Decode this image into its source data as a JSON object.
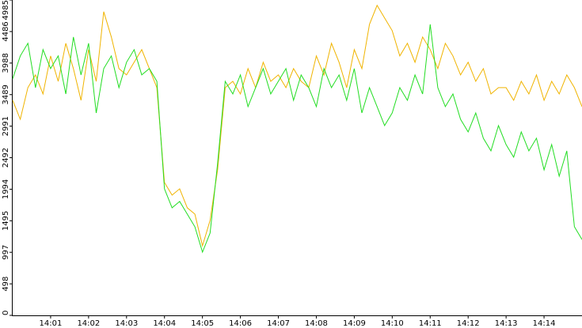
{
  "chart_data": {
    "type": "line",
    "x": [
      0,
      0.2,
      0.4,
      0.6,
      0.8,
      1,
      1.2,
      1.4,
      1.6,
      1.8,
      2,
      2.2,
      2.4,
      2.6,
      2.8,
      3,
      3.2,
      3.4,
      3.6,
      3.8,
      4,
      4.2,
      4.4,
      4.6,
      4.8,
      5,
      5.2,
      5.4,
      5.6,
      5.8,
      6,
      6.2,
      6.4,
      6.6,
      6.8,
      7,
      7.2,
      7.4,
      7.6,
      7.8,
      8,
      8.2,
      8.4,
      8.6,
      8.8,
      9,
      9.2,
      9.4,
      9.6,
      9.8,
      10,
      10.2,
      10.4,
      10.6,
      10.8,
      11,
      11.2,
      11.4,
      11.6,
      11.8,
      12,
      12.2,
      12.4,
      12.6,
      12.8,
      13,
      13.2,
      13.4,
      13.6,
      13.8,
      14,
      14.2,
      14.4,
      14.6,
      14.8,
      15
    ],
    "series": [
      {
        "color": "#f0b400",
        "values": [
          3400,
          3100,
          3600,
          3800,
          3500,
          4100,
          3700,
          4300,
          3900,
          3400,
          4200,
          3700,
          4800,
          4400,
          3900,
          3800,
          4000,
          4200,
          3900,
          3600,
          2100,
          1900,
          2000,
          1700,
          1600,
          1100,
          1500,
          2300,
          3600,
          3700,
          3500,
          3900,
          3600,
          4000,
          3700,
          3800,
          3600,
          3900,
          3700,
          3600,
          4100,
          3800,
          4300,
          4000,
          3600,
          4200,
          3900,
          4600,
          4900,
          4700,
          4500,
          4100,
          4300,
          4000,
          4400,
          4200,
          3900,
          4300,
          4100,
          3800,
          4000,
          3700,
          3900,
          3500,
          3600,
          3600,
          3400,
          3700,
          3500,
          3800,
          3400,
          3700,
          3500,
          3800,
          3600,
          3300
        ]
      },
      {
        "color": "#22dd22",
        "values": [
          3740,
          4100,
          4300,
          3600,
          4200,
          3900,
          4100,
          3500,
          4400,
          3800,
          4300,
          3200,
          3900,
          4100,
          3600,
          4000,
          4200,
          3800,
          3900,
          3700,
          2000,
          1700,
          1800,
          1600,
          1400,
          1000,
          1300,
          2400,
          3700,
          3500,
          3800,
          3300,
          3600,
          3900,
          3500,
          3700,
          3900,
          3400,
          3800,
          3600,
          3300,
          3900,
          3600,
          3800,
          3400,
          3900,
          3200,
          3600,
          3300,
          3000,
          3200,
          3600,
          3400,
          3800,
          3500,
          4600,
          3600,
          3300,
          3500,
          3100,
          2900,
          3200,
          2800,
          2600,
          3000,
          2700,
          2500,
          2900,
          2600,
          2800,
          2300,
          2700,
          2200,
          2600,
          1400,
          1200
        ]
      }
    ],
    "xlim": [
      0,
      15
    ],
    "xticks": [
      {
        "value": 1,
        "label": "14:01"
      },
      {
        "value": 2,
        "label": "14:02"
      },
      {
        "value": 3,
        "label": "14:03"
      },
      {
        "value": 4,
        "label": "14:04"
      },
      {
        "value": 5,
        "label": "14:05"
      },
      {
        "value": 6,
        "label": "14:06"
      },
      {
        "value": 7,
        "label": "14:07"
      },
      {
        "value": 8,
        "label": "14:08"
      },
      {
        "value": 9,
        "label": "14:09"
      },
      {
        "value": 10,
        "label": "14:10"
      },
      {
        "value": 11,
        "label": "14:11"
      },
      {
        "value": 12,
        "label": "14:12"
      },
      {
        "value": 13,
        "label": "14:13"
      },
      {
        "value": 14,
        "label": "14:14"
      }
    ],
    "ylim": [
      0,
      4985
    ],
    "yticks": [
      0,
      498,
      997,
      1495,
      1994,
      2492,
      2991,
      3489,
      3988,
      4486,
      4985
    ]
  }
}
